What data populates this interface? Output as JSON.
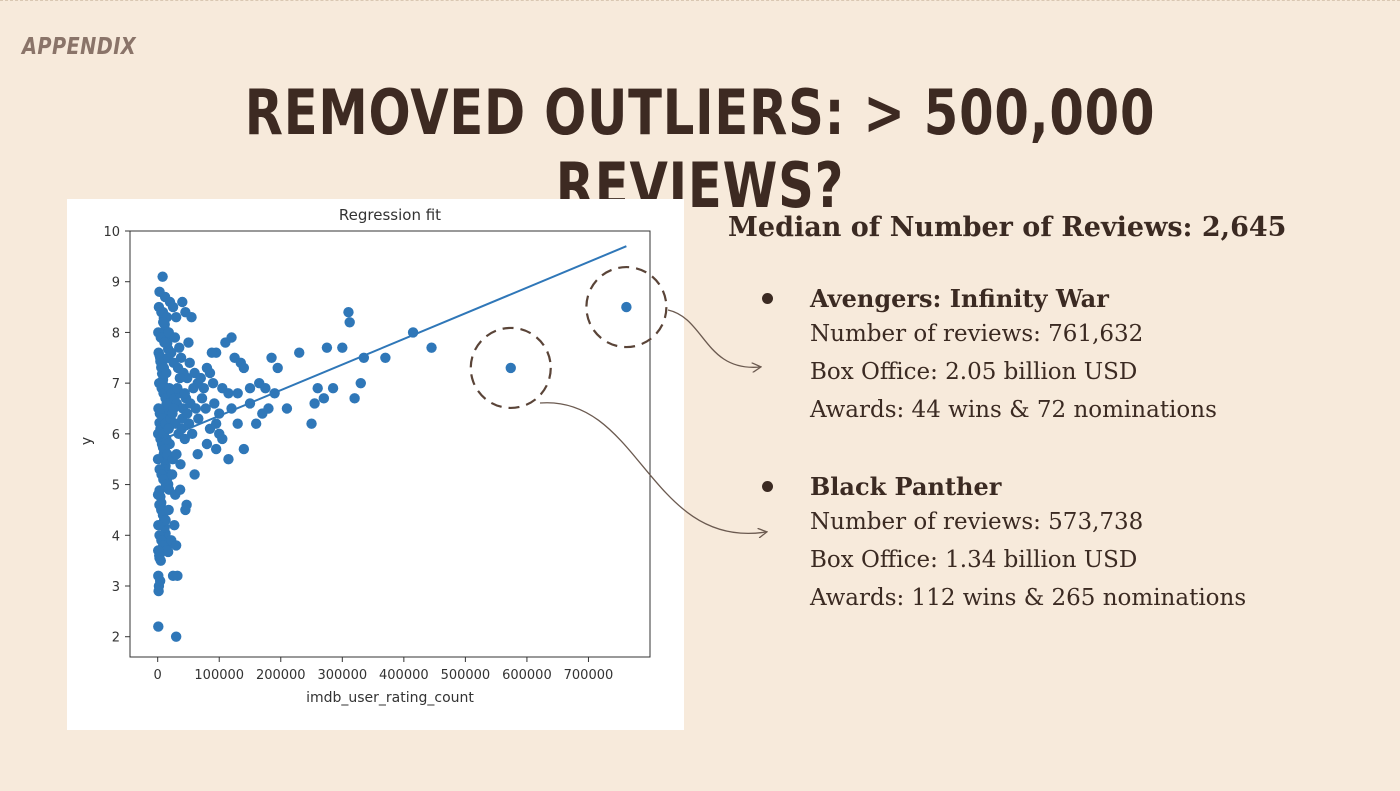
{
  "header": {
    "kicker": "APPENDIX",
    "title": "REMOVED OUTLIERS: > 500,000 REVIEWS?"
  },
  "chart_data": {
    "type": "scatter",
    "title": "Regression fit",
    "xlabel": "imdb_user_rating_count",
    "ylabel": "y",
    "xlim": [
      -45000,
      800000
    ],
    "ylim": [
      1.6,
      10
    ],
    "x_ticks": [
      "0",
      "100000",
      "200000",
      "300000",
      "400000",
      "500000",
      "600000",
      "700000"
    ],
    "x_tick_values": [
      0,
      100000,
      200000,
      300000,
      400000,
      500000,
      600000,
      700000
    ],
    "y_ticks": [
      "2",
      "3",
      "4",
      "5",
      "6",
      "7",
      "8",
      "9",
      "10"
    ],
    "y_tick_values": [
      2,
      3,
      4,
      5,
      6,
      7,
      8,
      9,
      10
    ],
    "point_color": "#2f77b8",
    "highlighted_points": [
      {
        "x": 761632,
        "y": 8.5
      },
      {
        "x": 573738,
        "y": 7.3
      }
    ],
    "regression_line": {
      "x": [
        0,
        761632
      ],
      "y": [
        5.85,
        9.7
      ]
    },
    "points": [
      [
        8000,
        9.1
      ],
      [
        3000,
        8.8
      ],
      [
        12000,
        8.7
      ],
      [
        20000,
        8.6
      ],
      [
        2000,
        8.5
      ],
      [
        6000,
        8.4
      ],
      [
        15000,
        8.3
      ],
      [
        30000,
        8.3
      ],
      [
        45000,
        8.4
      ],
      [
        25000,
        8.5
      ],
      [
        40000,
        8.6
      ],
      [
        9000,
        8.2
      ],
      [
        55000,
        8.3
      ],
      [
        1000,
        8.0
      ],
      [
        5000,
        7.9
      ],
      [
        11000,
        7.8
      ],
      [
        18000,
        8.0
      ],
      [
        28000,
        7.9
      ],
      [
        35000,
        7.7
      ],
      [
        50000,
        7.8
      ],
      [
        1500,
        7.6
      ],
      [
        4000,
        7.5
      ],
      [
        7500,
        7.4
      ],
      [
        10000,
        7.3
      ],
      [
        14000,
        7.2
      ],
      [
        17000,
        7.5
      ],
      [
        22000,
        7.6
      ],
      [
        26000,
        7.4
      ],
      [
        33000,
        7.3
      ],
      [
        38000,
        7.5
      ],
      [
        42000,
        7.2
      ],
      [
        48000,
        7.1
      ],
      [
        52000,
        7.4
      ],
      [
        60000,
        7.2
      ],
      [
        65000,
        7.0
      ],
      [
        70000,
        7.1
      ],
      [
        75000,
        6.9
      ],
      [
        85000,
        7.2
      ],
      [
        90000,
        7.0
      ],
      [
        2500,
        7.0
      ],
      [
        6500,
        6.9
      ],
      [
        9500,
        6.8
      ],
      [
        13000,
        6.7
      ],
      [
        16000,
        6.6
      ],
      [
        19000,
        6.9
      ],
      [
        23000,
        6.8
      ],
      [
        27000,
        6.7
      ],
      [
        31000,
        6.6
      ],
      [
        36000,
        6.8
      ],
      [
        41000,
        6.5
      ],
      [
        46000,
        6.7
      ],
      [
        1200,
        6.5
      ],
      [
        3500,
        6.4
      ],
      [
        8500,
        6.3
      ],
      [
        12500,
        6.2
      ],
      [
        16500,
        6.1
      ],
      [
        21000,
        6.3
      ],
      [
        24000,
        6.4
      ],
      [
        29000,
        6.2
      ],
      [
        34000,
        6.0
      ],
      [
        39000,
        6.1
      ],
      [
        44000,
        5.9
      ],
      [
        51000,
        6.2
      ],
      [
        56000,
        6.0
      ],
      [
        800,
        6.0
      ],
      [
        4500,
        5.9
      ],
      [
        7000,
        5.8
      ],
      [
        11500,
        5.7
      ],
      [
        15500,
        5.6
      ],
      [
        19500,
        5.8
      ],
      [
        24500,
        5.5
      ],
      [
        30500,
        5.6
      ],
      [
        37000,
        5.4
      ],
      [
        500,
        5.5
      ],
      [
        3200,
        5.3
      ],
      [
        6200,
        5.2
      ],
      [
        9200,
        5.1
      ],
      [
        13500,
        5.0
      ],
      [
        18500,
        4.9
      ],
      [
        23500,
        5.2
      ],
      [
        28500,
        4.8
      ],
      [
        36500,
        4.9
      ],
      [
        47000,
        4.6
      ],
      [
        600,
        4.8
      ],
      [
        2800,
        4.6
      ],
      [
        5800,
        4.5
      ],
      [
        8800,
        4.4
      ],
      [
        12800,
        4.3
      ],
      [
        17800,
        4.5
      ],
      [
        27000,
        4.2
      ],
      [
        45000,
        4.5
      ],
      [
        1000,
        4.2
      ],
      [
        3000,
        4.0
      ],
      [
        6000,
        3.9
      ],
      [
        9000,
        3.8
      ],
      [
        14000,
        3.7
      ],
      [
        22000,
        3.9
      ],
      [
        30000,
        3.8
      ],
      [
        800,
        3.7
      ],
      [
        2500,
        3.6
      ],
      [
        5000,
        3.5
      ],
      [
        1000,
        3.2
      ],
      [
        4000,
        3.1
      ],
      [
        2000,
        3.0
      ],
      [
        1500,
        2.9
      ],
      [
        25000,
        3.2
      ],
      [
        32000,
        3.2
      ],
      [
        1000,
        2.2
      ],
      [
        30000,
        2.0
      ],
      [
        10000,
        6.0
      ],
      [
        14000,
        5.9
      ],
      [
        18000,
        6.1
      ],
      [
        26000,
        6.5
      ],
      [
        32000,
        6.9
      ],
      [
        36000,
        7.1
      ],
      [
        40000,
        6.3
      ],
      [
        44000,
        6.8
      ],
      [
        48000,
        6.4
      ],
      [
        53000,
        6.6
      ],
      [
        58000,
        6.9
      ],
      [
        62000,
        6.5
      ],
      [
        66000,
        6.3
      ],
      [
        72000,
        6.7
      ],
      [
        78000,
        6.5
      ],
      [
        80000,
        7.3
      ],
      [
        95000,
        7.6
      ],
      [
        100000,
        6.4
      ],
      [
        105000,
        6.9
      ],
      [
        110000,
        7.8
      ],
      [
        115000,
        6.8
      ],
      [
        120000,
        7.9
      ],
      [
        125000,
        7.5
      ],
      [
        130000,
        6.8
      ],
      [
        135000,
        7.4
      ],
      [
        140000,
        7.3
      ],
      [
        150000,
        6.6
      ],
      [
        160000,
        6.2
      ],
      [
        165000,
        7.0
      ],
      [
        170000,
        6.4
      ],
      [
        175000,
        6.9
      ],
      [
        180000,
        6.5
      ],
      [
        185000,
        7.5
      ],
      [
        190000,
        6.8
      ],
      [
        195000,
        7.3
      ],
      [
        210000,
        6.5
      ],
      [
        230000,
        7.6
      ],
      [
        250000,
        6.2
      ],
      [
        255000,
        6.6
      ],
      [
        260000,
        6.9
      ],
      [
        270000,
        6.7
      ],
      [
        275000,
        7.7
      ],
      [
        285000,
        6.9
      ],
      [
        300000,
        7.7
      ],
      [
        310000,
        8.4
      ],
      [
        312000,
        8.2
      ],
      [
        320000,
        6.7
      ],
      [
        330000,
        7.0
      ],
      [
        335000,
        7.5
      ],
      [
        370000,
        7.5
      ],
      [
        415000,
        8.0
      ],
      [
        445000,
        7.7
      ],
      [
        60000,
        5.2
      ],
      [
        65000,
        5.6
      ],
      [
        80000,
        5.8
      ],
      [
        85000,
        6.1
      ],
      [
        95000,
        5.7
      ],
      [
        100000,
        6.0
      ],
      [
        115000,
        5.5
      ],
      [
        130000,
        6.2
      ],
      [
        140000,
        5.7
      ],
      [
        95000,
        6.2
      ],
      [
        105000,
        5.9
      ],
      [
        120000,
        6.5
      ],
      [
        150000,
        6.9
      ],
      [
        88000,
        7.6
      ],
      [
        92000,
        6.6
      ]
    ]
  },
  "median_text": "Median of Number of Reviews: 2,645",
  "movies": [
    {
      "name": "Avengers: Infinity War",
      "lines": [
        "Number of reviews: 761,632",
        "Box Office: 2.05 billion USD",
        "Awards: 44 wins & 72 nominations"
      ]
    },
    {
      "name": "Black Panther",
      "lines": [
        "Number of reviews: 573,738",
        "Box Office: 1.34 billion USD",
        "Awards: 112 wins & 265 nominations"
      ]
    }
  ]
}
